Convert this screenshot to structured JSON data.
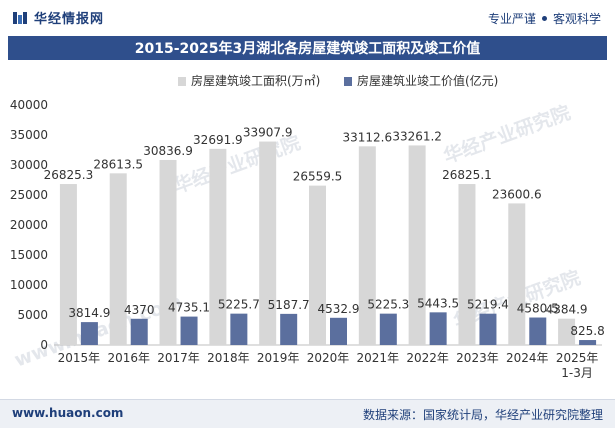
{
  "header": {
    "brand": "华经情报网",
    "tagline_left": "专业严谨",
    "tagline_right": "客观科学"
  },
  "watermark": {
    "text": "华经产业研究院",
    "site": "www.huaon.com"
  },
  "colors": {
    "series1": "#d7d7d7",
    "series2": "#5b6f9e",
    "title_bg": "#2f4f8c",
    "brand": "#1f3f7a"
  },
  "chart_data": {
    "type": "bar",
    "title": "2015-2025年3月湖北各房屋建筑竣工面积及竣工价值",
    "categories": [
      "2015年",
      "2016年",
      "2017年",
      "2018年",
      "2019年",
      "2020年",
      "2021年",
      "2022年",
      "2023年",
      "2024年",
      "2025年 1-3月"
    ],
    "series": [
      {
        "name": "房屋建筑竣工面积(万㎡)",
        "values": [
          26825.3,
          28613.5,
          30836.9,
          32691.9,
          33907.9,
          26559.5,
          33112.6,
          33261.2,
          26825.1,
          23600.6,
          4384.9
        ]
      },
      {
        "name": "房屋建筑业竣工价值(亿元)",
        "values": [
          3814.9,
          4370,
          4735.1,
          5225.7,
          5187.7,
          4532.9,
          5225.3,
          5443.5,
          5219.4,
          4580.5,
          825.8
        ]
      }
    ],
    "ylim": [
      0,
      40000
    ],
    "yticks": [
      0,
      5000,
      10000,
      15000,
      20000,
      25000,
      30000,
      35000,
      40000
    ],
    "xlabel": "",
    "ylabel": "",
    "legend": "top-center",
    "grid": false
  },
  "footer": {
    "website": "www.huaon.com",
    "source": "数据来源：国家统计局，华经产业研究院整理"
  }
}
